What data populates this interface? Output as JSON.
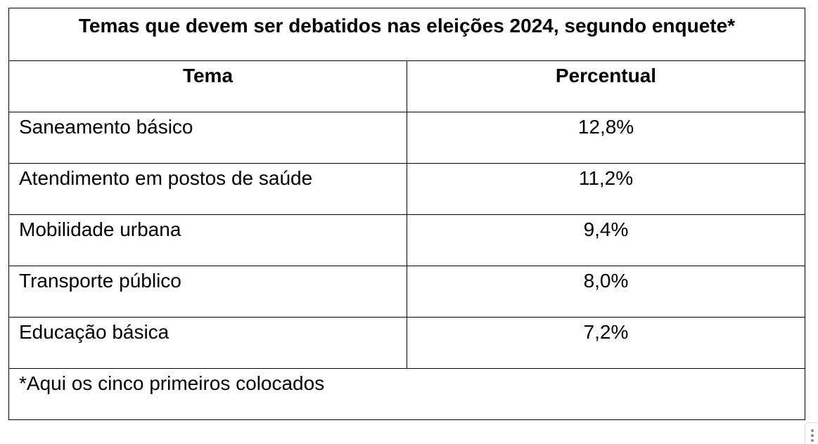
{
  "table": {
    "title": "Temas que devem ser debatidos nas eleições 2024, segundo enquete*",
    "headers": {
      "tema": "Tema",
      "percentual": "Percentual"
    },
    "rows": [
      {
        "tema": "Saneamento básico",
        "percentual": "12,8%"
      },
      {
        "tema": "Atendimento em postos de saúde",
        "percentual": "11,2%"
      },
      {
        "tema": "Mobilidade urbana",
        "percentual": "9,4%"
      },
      {
        "tema": "Transporte público",
        "percentual": "8,0%"
      },
      {
        "tema": "Educação básica",
        "percentual": "7,2%"
      }
    ],
    "footnote": "*Aqui os cinco primeiros colocados"
  },
  "colors": {
    "border": "#000000",
    "background": "#ffffff",
    "text": "#000000"
  },
  "icons": {
    "resize_handle": "vertical-dots-icon"
  }
}
